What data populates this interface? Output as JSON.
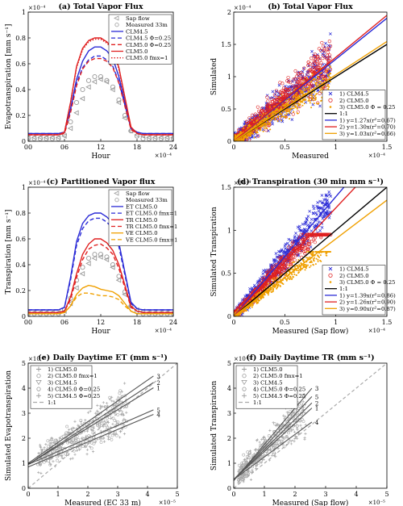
{
  "chart_data": [
    {
      "type": "line",
      "title": "(a) Total Vapor Flux",
      "xlabel": "Hour",
      "ylabel": "Evapotranspiration [mm s⁻¹]",
      "exponent": "×10⁻⁴",
      "xlim": [
        0,
        24
      ],
      "ylim": [
        0,
        1.0
      ],
      "xticks": [
        0,
        6,
        12,
        18,
        24
      ],
      "xticklabels": [
        "00",
        "06",
        "12",
        "18",
        "24"
      ],
      "yticks": [
        0,
        0.2,
        0.4,
        0.6,
        0.8,
        1.0
      ],
      "yticklabels": [
        "0",
        "0.2",
        "0.4",
        "0.6",
        "0.8",
        "1"
      ],
      "x": [
        0,
        1,
        2,
        3,
        4,
        5,
        6,
        7,
        8,
        9,
        10,
        11,
        12,
        13,
        14,
        15,
        16,
        17,
        18,
        19,
        20,
        21,
        22,
        23,
        24
      ],
      "legend_placement": "top-right",
      "series": [
        {
          "name": "Sap flow",
          "color": "#999999",
          "marker": "triangle-left",
          "values": [
            0.03,
            0.03,
            0.03,
            0.03,
            0.03,
            0.03,
            0.04,
            0.1,
            0.22,
            0.33,
            0.42,
            0.46,
            0.48,
            0.46,
            0.4,
            0.3,
            0.18,
            0.08,
            0.05,
            0.04,
            0.03,
            0.03,
            0.03,
            0.03,
            0.03
          ]
        },
        {
          "name": "Measured 33m",
          "color": "#999999",
          "marker": "circle",
          "values": [
            0.02,
            0.02,
            0.02,
            0.02,
            0.02,
            0.02,
            0.05,
            0.15,
            0.3,
            0.4,
            0.47,
            0.5,
            0.5,
            0.47,
            0.42,
            0.32,
            0.2,
            0.08,
            0.04,
            0.02,
            0.02,
            0.02,
            0.02,
            0.02,
            0.02
          ]
        },
        {
          "name": "CLM4.5",
          "color": "#2a2ad6",
          "dash": "solid",
          "values": [
            0.06,
            0.06,
            0.06,
            0.06,
            0.06,
            0.06,
            0.07,
            0.25,
            0.48,
            0.62,
            0.7,
            0.73,
            0.73,
            0.7,
            0.64,
            0.5,
            0.3,
            0.1,
            0.07,
            0.06,
            0.06,
            0.06,
            0.06,
            0.06,
            0.06
          ]
        },
        {
          "name": "CLM4.5 Φ=0.25",
          "color": "#2a2ad6",
          "dash": "dashed",
          "values": [
            0.06,
            0.06,
            0.06,
            0.06,
            0.06,
            0.06,
            0.07,
            0.24,
            0.45,
            0.57,
            0.63,
            0.66,
            0.66,
            0.63,
            0.58,
            0.46,
            0.28,
            0.1,
            0.07,
            0.06,
            0.06,
            0.06,
            0.06,
            0.06,
            0.06
          ]
        },
        {
          "name": "CLM5.0 Φ=0.25",
          "color": "#e02020",
          "dash": "dashed",
          "values": [
            0.05,
            0.05,
            0.05,
            0.05,
            0.05,
            0.05,
            0.06,
            0.22,
            0.43,
            0.56,
            0.62,
            0.64,
            0.64,
            0.62,
            0.57,
            0.45,
            0.27,
            0.09,
            0.06,
            0.05,
            0.05,
            0.05,
            0.05,
            0.05,
            0.05
          ]
        },
        {
          "name": "CLM5.0",
          "color": "#e02020",
          "dash": "solid",
          "values": [
            0.05,
            0.05,
            0.05,
            0.05,
            0.05,
            0.05,
            0.07,
            0.3,
            0.58,
            0.72,
            0.78,
            0.8,
            0.8,
            0.77,
            0.72,
            0.57,
            0.34,
            0.11,
            0.06,
            0.05,
            0.05,
            0.05,
            0.05,
            0.05,
            0.05
          ]
        },
        {
          "name": "CLM5.0 fmx=1",
          "color": "#e02020",
          "dash": "dotted",
          "values": [
            0.05,
            0.05,
            0.05,
            0.05,
            0.05,
            0.05,
            0.07,
            0.3,
            0.57,
            0.71,
            0.77,
            0.79,
            0.79,
            0.76,
            0.71,
            0.56,
            0.33,
            0.11,
            0.06,
            0.05,
            0.05,
            0.05,
            0.05,
            0.05,
            0.05
          ]
        }
      ]
    },
    {
      "type": "scatter",
      "title": "(b) Total Vapor Flux",
      "xlabel": "Measured",
      "ylabel": "Simulated",
      "exponent": "×10⁻⁴",
      "xlim": [
        0,
        1.5
      ],
      "ylim": [
        0,
        2
      ],
      "xticks": [
        0,
        0.5,
        1,
        1.5
      ],
      "xticklabels": [
        "0",
        "0.5",
        "1",
        "1.5"
      ],
      "yticks": [
        0,
        0.5,
        1,
        1.5,
        2
      ],
      "yticklabels": [
        "0",
        "0.5",
        "1",
        "1.5",
        "2"
      ],
      "legend_placement": "bottom-right",
      "series": [
        {
          "name": "1) CLM4.5",
          "color": "#2a2ad6",
          "marker": "x"
        },
        {
          "name": "2) CLM5.0",
          "color": "#e02020",
          "marker": "circle"
        },
        {
          "name": "3) CLM5.0 Φ = 0.25",
          "color": "#f0a000",
          "marker": "dot"
        }
      ],
      "fits": [
        {
          "name": "1:1",
          "color": "#000000",
          "slope": 1.0
        },
        {
          "name": "1) y=1.27x(r²=0.67)",
          "color": "#2a2ad6",
          "slope": 1.27
        },
        {
          "name": "2) y=1.30x(r²=0.70)",
          "color": "#e02020",
          "slope": 1.3
        },
        {
          "name": "3) y=1.03x(r²=0.66)",
          "color": "#f0a000",
          "slope": 1.03
        }
      ]
    },
    {
      "type": "line",
      "title": "(c) Partitioned Vapor flux",
      "xlabel": "Hour",
      "ylabel": "Transpiration [mm s⁻¹]",
      "exponent": "×10⁻⁴",
      "xlim": [
        0,
        24
      ],
      "ylim": [
        0,
        1.0
      ],
      "xticks": [
        0,
        6,
        12,
        18,
        24
      ],
      "xticklabels": [
        "00",
        "06",
        "12",
        "18",
        "24"
      ],
      "yticks": [
        0,
        0.2,
        0.4,
        0.6,
        0.8,
        1.0
      ],
      "yticklabels": [
        "0",
        "0.2",
        "0.4",
        "0.6",
        "0.8",
        "1"
      ],
      "x": [
        0,
        1,
        2,
        3,
        4,
        5,
        6,
        7,
        8,
        9,
        10,
        11,
        12,
        13,
        14,
        15,
        16,
        17,
        18,
        19,
        20,
        21,
        22,
        23,
        24
      ],
      "legend_placement": "top-right",
      "series": [
        {
          "name": "Sap flow",
          "color": "#999999",
          "marker": "triangle-left",
          "values": [
            0.03,
            0.03,
            0.03,
            0.03,
            0.03,
            0.03,
            0.04,
            0.1,
            0.22,
            0.33,
            0.41,
            0.45,
            0.46,
            0.44,
            0.38,
            0.28,
            0.17,
            0.08,
            0.05,
            0.04,
            0.03,
            0.03,
            0.03,
            0.03,
            0.03
          ]
        },
        {
          "name": "Measured 33m",
          "color": "#999999",
          "marker": "circle",
          "values": [
            0.02,
            0.02,
            0.02,
            0.02,
            0.02,
            0.02,
            0.05,
            0.14,
            0.28,
            0.38,
            0.45,
            0.48,
            0.48,
            0.46,
            0.4,
            0.31,
            0.19,
            0.08,
            0.04,
            0.02,
            0.02,
            0.02,
            0.02,
            0.02,
            0.02
          ]
        },
        {
          "name": "ET CLM5.0",
          "color": "#2a2ad6",
          "dash": "solid",
          "values": [
            0.05,
            0.05,
            0.05,
            0.05,
            0.05,
            0.05,
            0.07,
            0.3,
            0.58,
            0.72,
            0.78,
            0.8,
            0.8,
            0.77,
            0.72,
            0.57,
            0.34,
            0.11,
            0.06,
            0.05,
            0.05,
            0.05,
            0.05,
            0.05,
            0.05
          ]
        },
        {
          "name": "ET CLM5.0 fmx=1",
          "color": "#2a2ad6",
          "dash": "dashed",
          "values": [
            0.05,
            0.05,
            0.05,
            0.05,
            0.05,
            0.05,
            0.07,
            0.28,
            0.55,
            0.68,
            0.74,
            0.76,
            0.76,
            0.73,
            0.68,
            0.54,
            0.32,
            0.1,
            0.06,
            0.05,
            0.05,
            0.05,
            0.05,
            0.05,
            0.05
          ]
        },
        {
          "name": "TR CLM5.0",
          "color": "#e02020",
          "dash": "solid",
          "values": [
            0.03,
            0.03,
            0.03,
            0.03,
            0.03,
            0.03,
            0.04,
            0.15,
            0.33,
            0.48,
            0.56,
            0.6,
            0.6,
            0.57,
            0.51,
            0.4,
            0.24,
            0.08,
            0.04,
            0.03,
            0.03,
            0.03,
            0.03,
            0.03,
            0.03
          ]
        },
        {
          "name": "TR CLM5.0 fmx=1",
          "color": "#e02020",
          "dash": "dashed",
          "values": [
            0.03,
            0.03,
            0.03,
            0.03,
            0.03,
            0.03,
            0.04,
            0.13,
            0.3,
            0.44,
            0.52,
            0.55,
            0.56,
            0.53,
            0.48,
            0.37,
            0.22,
            0.07,
            0.04,
            0.03,
            0.03,
            0.03,
            0.03,
            0.03,
            0.03
          ]
        },
        {
          "name": "VE CLM5.0",
          "color": "#f0a000",
          "dash": "solid",
          "values": [
            0.02,
            0.02,
            0.02,
            0.02,
            0.02,
            0.02,
            0.03,
            0.08,
            0.17,
            0.22,
            0.24,
            0.23,
            0.21,
            0.2,
            0.19,
            0.16,
            0.1,
            0.04,
            0.02,
            0.02,
            0.02,
            0.02,
            0.02,
            0.02,
            0.02
          ]
        },
        {
          "name": "VE CLM5.0 fmx=1",
          "color": "#f0a000",
          "dash": "dashed",
          "values": [
            0.02,
            0.02,
            0.02,
            0.02,
            0.02,
            0.02,
            0.03,
            0.08,
            0.15,
            0.18,
            0.18,
            0.17,
            0.16,
            0.16,
            0.15,
            0.13,
            0.08,
            0.04,
            0.02,
            0.02,
            0.02,
            0.02,
            0.02,
            0.02,
            0.02
          ]
        }
      ]
    },
    {
      "type": "scatter",
      "title": "(d) Transpiration (30 min mm s⁻¹)",
      "xlabel": "Measured (Sap flow)",
      "ylabel": "Simulated Transpiration",
      "exponent": "×10⁻⁴",
      "xlim": [
        0,
        1.5
      ],
      "ylim": [
        0,
        1.5
      ],
      "xticks": [
        0,
        0.5,
        1,
        1.5
      ],
      "xticklabels": [
        "0",
        "0.5",
        "1",
        "1.5"
      ],
      "yticks": [
        0,
        0.5,
        1,
        1.5
      ],
      "yticklabels": [
        "0",
        "0.5",
        "1",
        "1.5"
      ],
      "legend_placement": "bottom-right",
      "series": [
        {
          "name": "1) CLM4.5",
          "color": "#2a2ad6",
          "marker": "x"
        },
        {
          "name": "2) CLM5.0",
          "color": "#e02020",
          "marker": "circle"
        },
        {
          "name": "3) CLM5.0 Φ = 0.25",
          "color": "#f0a000",
          "marker": "dot"
        }
      ],
      "fits": [
        {
          "name": "1:1",
          "color": "#000000",
          "slope": 1.0
        },
        {
          "name": "1) y=1.39x(r²=0.86)",
          "color": "#2a2ad6",
          "slope": 1.39
        },
        {
          "name": "2) y=1.26x(r²=0.90)",
          "color": "#e02020",
          "slope": 1.26
        },
        {
          "name": "3) y=0.90x(r²=0.87)",
          "color": "#f0a000",
          "slope": 0.9
        }
      ]
    },
    {
      "type": "scatter",
      "title": "(e) Daily Daytime ET (mm s⁻¹)",
      "xlabel": "Measured (EC 33 m)",
      "ylabel": "Simulated Evapotranspiration",
      "exponent": "×10⁻⁵",
      "xlim": [
        0,
        5
      ],
      "ylim": [
        0,
        5
      ],
      "xticks": [
        0,
        1,
        2,
        3,
        4,
        5
      ],
      "xticklabels": [
        "0",
        "1",
        "2",
        "3",
        "4",
        "5"
      ],
      "yticks": [
        0,
        1,
        2,
        3,
        4,
        5
      ],
      "yticklabels": [
        "0",
        "1",
        "2",
        "3",
        "4",
        "5"
      ],
      "legend_placement": "top-left",
      "series": [
        {
          "name": "1) CLM5.0",
          "color": "#999999",
          "marker": "star"
        },
        {
          "name": "2) CLM5.0 fmx=1",
          "color": "#999999",
          "marker": "circle"
        },
        {
          "name": "3) CLM4.5",
          "color": "#999999",
          "marker": "triangle-down"
        },
        {
          "name": "4) CLM5.0 Φ=0.25",
          "color": "#999999",
          "marker": "circle"
        },
        {
          "name": "5) CLM4.5 Φ=0.25",
          "color": "#999999",
          "marker": "plus"
        }
      ],
      "fits": [
        {
          "name": "1:1",
          "color": "#aaaaaa",
          "dash": "dashed",
          "intercept": 0,
          "slope": 1.0
        },
        {
          "label": "3",
          "intercept": 1.0,
          "slope": 0.83
        },
        {
          "label": "2",
          "intercept": 0.95,
          "slope": 0.78
        },
        {
          "label": "1",
          "intercept": 0.95,
          "slope": 0.73
        },
        {
          "label": "5",
          "intercept": 0.95,
          "slope": 0.52
        },
        {
          "label": "4",
          "intercept": 0.85,
          "slope": 0.5
        }
      ]
    },
    {
      "type": "scatter",
      "title": "(f) Daily Daytime TR (mm s⁻¹)",
      "xlabel": "Measured (Sap flow)",
      "ylabel": "Simulated Transpiration",
      "exponent": "×10⁻⁵",
      "xlim": [
        0,
        5
      ],
      "ylim": [
        0,
        5
      ],
      "xticks": [
        0,
        1,
        2,
        3,
        4,
        5
      ],
      "xticklabels": [
        "0",
        "1",
        "2",
        "3",
        "4",
        "5"
      ],
      "yticks": [
        0,
        1,
        2,
        3,
        4,
        5
      ],
      "yticklabels": [
        "0",
        "1",
        "2",
        "3",
        "4",
        "5"
      ],
      "legend_placement": "top-left",
      "series": [
        {
          "name": "1) CLM5.0",
          "color": "#999999",
          "marker": "star"
        },
        {
          "name": "2) CLM5.0 fmx=1",
          "color": "#999999",
          "marker": "circle"
        },
        {
          "name": "3) CLM4.5",
          "color": "#999999",
          "marker": "triangle-down"
        },
        {
          "name": "4) CLM5.0 Φ=0.25",
          "color": "#999999",
          "marker": "circle"
        },
        {
          "name": "5) CLM4.5 Φ=0.25",
          "color": "#999999",
          "marker": "plus"
        }
      ],
      "fits": [
        {
          "name": "1:1",
          "color": "#aaaaaa",
          "dash": "dashed",
          "intercept": 0,
          "slope": 1.0
        },
        {
          "label": "3",
          "intercept": 0.3,
          "slope": 1.45
        },
        {
          "label": "5",
          "intercept": 0.35,
          "slope": 1.3
        },
        {
          "label": "2",
          "intercept": 0.35,
          "slope": 1.2
        },
        {
          "label": "1",
          "intercept": 0.35,
          "slope": 1.12
        },
        {
          "label": "4",
          "intercept": 0.35,
          "slope": 0.9
        }
      ]
    }
  ]
}
